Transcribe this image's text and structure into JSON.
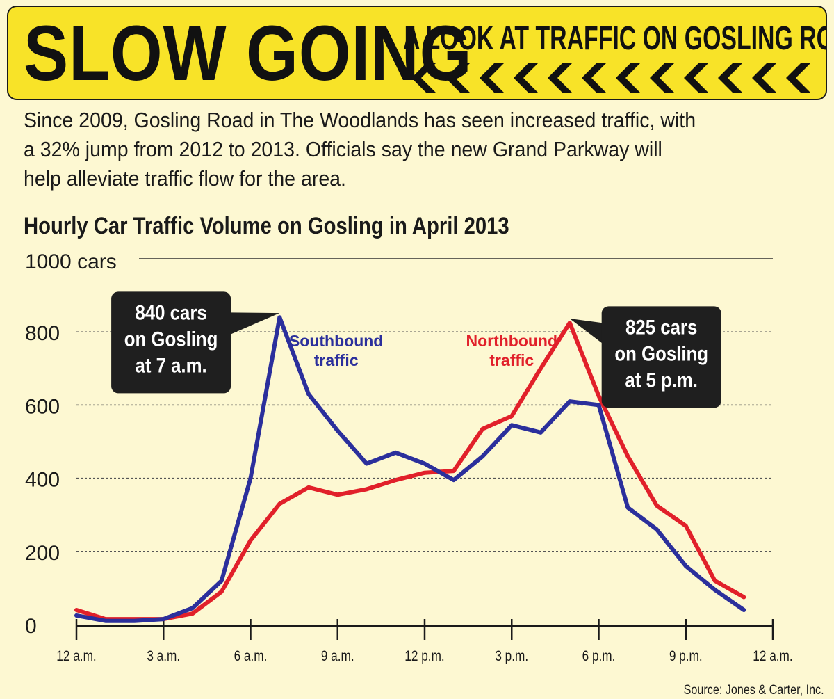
{
  "header": {
    "title": "SLOW GOING",
    "subtitle": "A LOOK AT TRAFFIC ON GOSLING ROAD"
  },
  "intro": {
    "line1": "Since 2009, Gosling Road in The Woodlands has seen increased traffic, with",
    "line2": "a 32% jump from 2012 to 2013. Officials say the new Grand Parkway will",
    "line3": "help alleviate traffic flow for the area."
  },
  "source": "Source: Jones & Carter, Inc.",
  "colors": {
    "banner": "#f8e328",
    "background": "#fdf8d2",
    "southbound": "#2b2f9c",
    "northbound": "#e1202a",
    "callout": "#1f1f1f"
  },
  "chart_data": {
    "type": "line",
    "title": "Hourly Car Traffic Volume on Gosling in April 2013",
    "xlabel": "",
    "ylabel": "",
    "ylim": [
      0,
      1000
    ],
    "xlim": [
      0,
      24
    ],
    "x": [
      0,
      1,
      2,
      3,
      4,
      5,
      6,
      7,
      8,
      9,
      10,
      11,
      12,
      13,
      14,
      15,
      16,
      17,
      18,
      19,
      20,
      21,
      22,
      23
    ],
    "xticks": [
      0,
      3,
      6,
      9,
      12,
      15,
      18,
      21,
      24
    ],
    "xtick_labels": [
      "12 a.m.",
      "3 a.m.",
      "6 a.m.",
      "9 a.m.",
      "12 p.m.",
      "3 p.m.",
      "6 p.m.",
      "9 p.m.",
      "12 a.m."
    ],
    "yticks": [
      0,
      200,
      400,
      600,
      800,
      1000
    ],
    "ytick_labels": [
      "0",
      "200",
      "400",
      "600",
      "800",
      "1000 cars"
    ],
    "grid": true,
    "series": [
      {
        "name": "Southbound traffic",
        "color": "#2b2f9c",
        "label_lines": [
          "Southbound",
          "traffic"
        ],
        "label_x": 8.95,
        "label_y": 760,
        "values": [
          25,
          10,
          10,
          15,
          45,
          120,
          400,
          840,
          630,
          530,
          440,
          470,
          440,
          395,
          460,
          545,
          525,
          610,
          600,
          320,
          260,
          160,
          95,
          40
        ]
      },
      {
        "name": "Northbound traffic",
        "color": "#e1202a",
        "label_lines": [
          "Northbound",
          "traffic"
        ],
        "label_x": 15.0,
        "label_y": 760,
        "values": [
          40,
          15,
          15,
          15,
          30,
          90,
          230,
          330,
          375,
          355,
          370,
          395,
          415,
          420,
          535,
          570,
          700,
          825,
          625,
          460,
          325,
          270,
          120,
          75
        ]
      }
    ],
    "annotations": [
      {
        "lines": [
          "840 cars",
          "on Gosling",
          "at 7 a.m."
        ],
        "point_x": 7,
        "point_y": 840,
        "box_x": 1.2,
        "box_y": 910,
        "pointer": "right"
      },
      {
        "lines": [
          "825 cars",
          "on Gosling",
          "at 5 p.m."
        ],
        "point_x": 17,
        "point_y": 825,
        "box_x": 18.1,
        "box_y": 870,
        "pointer": "left"
      }
    ]
  }
}
